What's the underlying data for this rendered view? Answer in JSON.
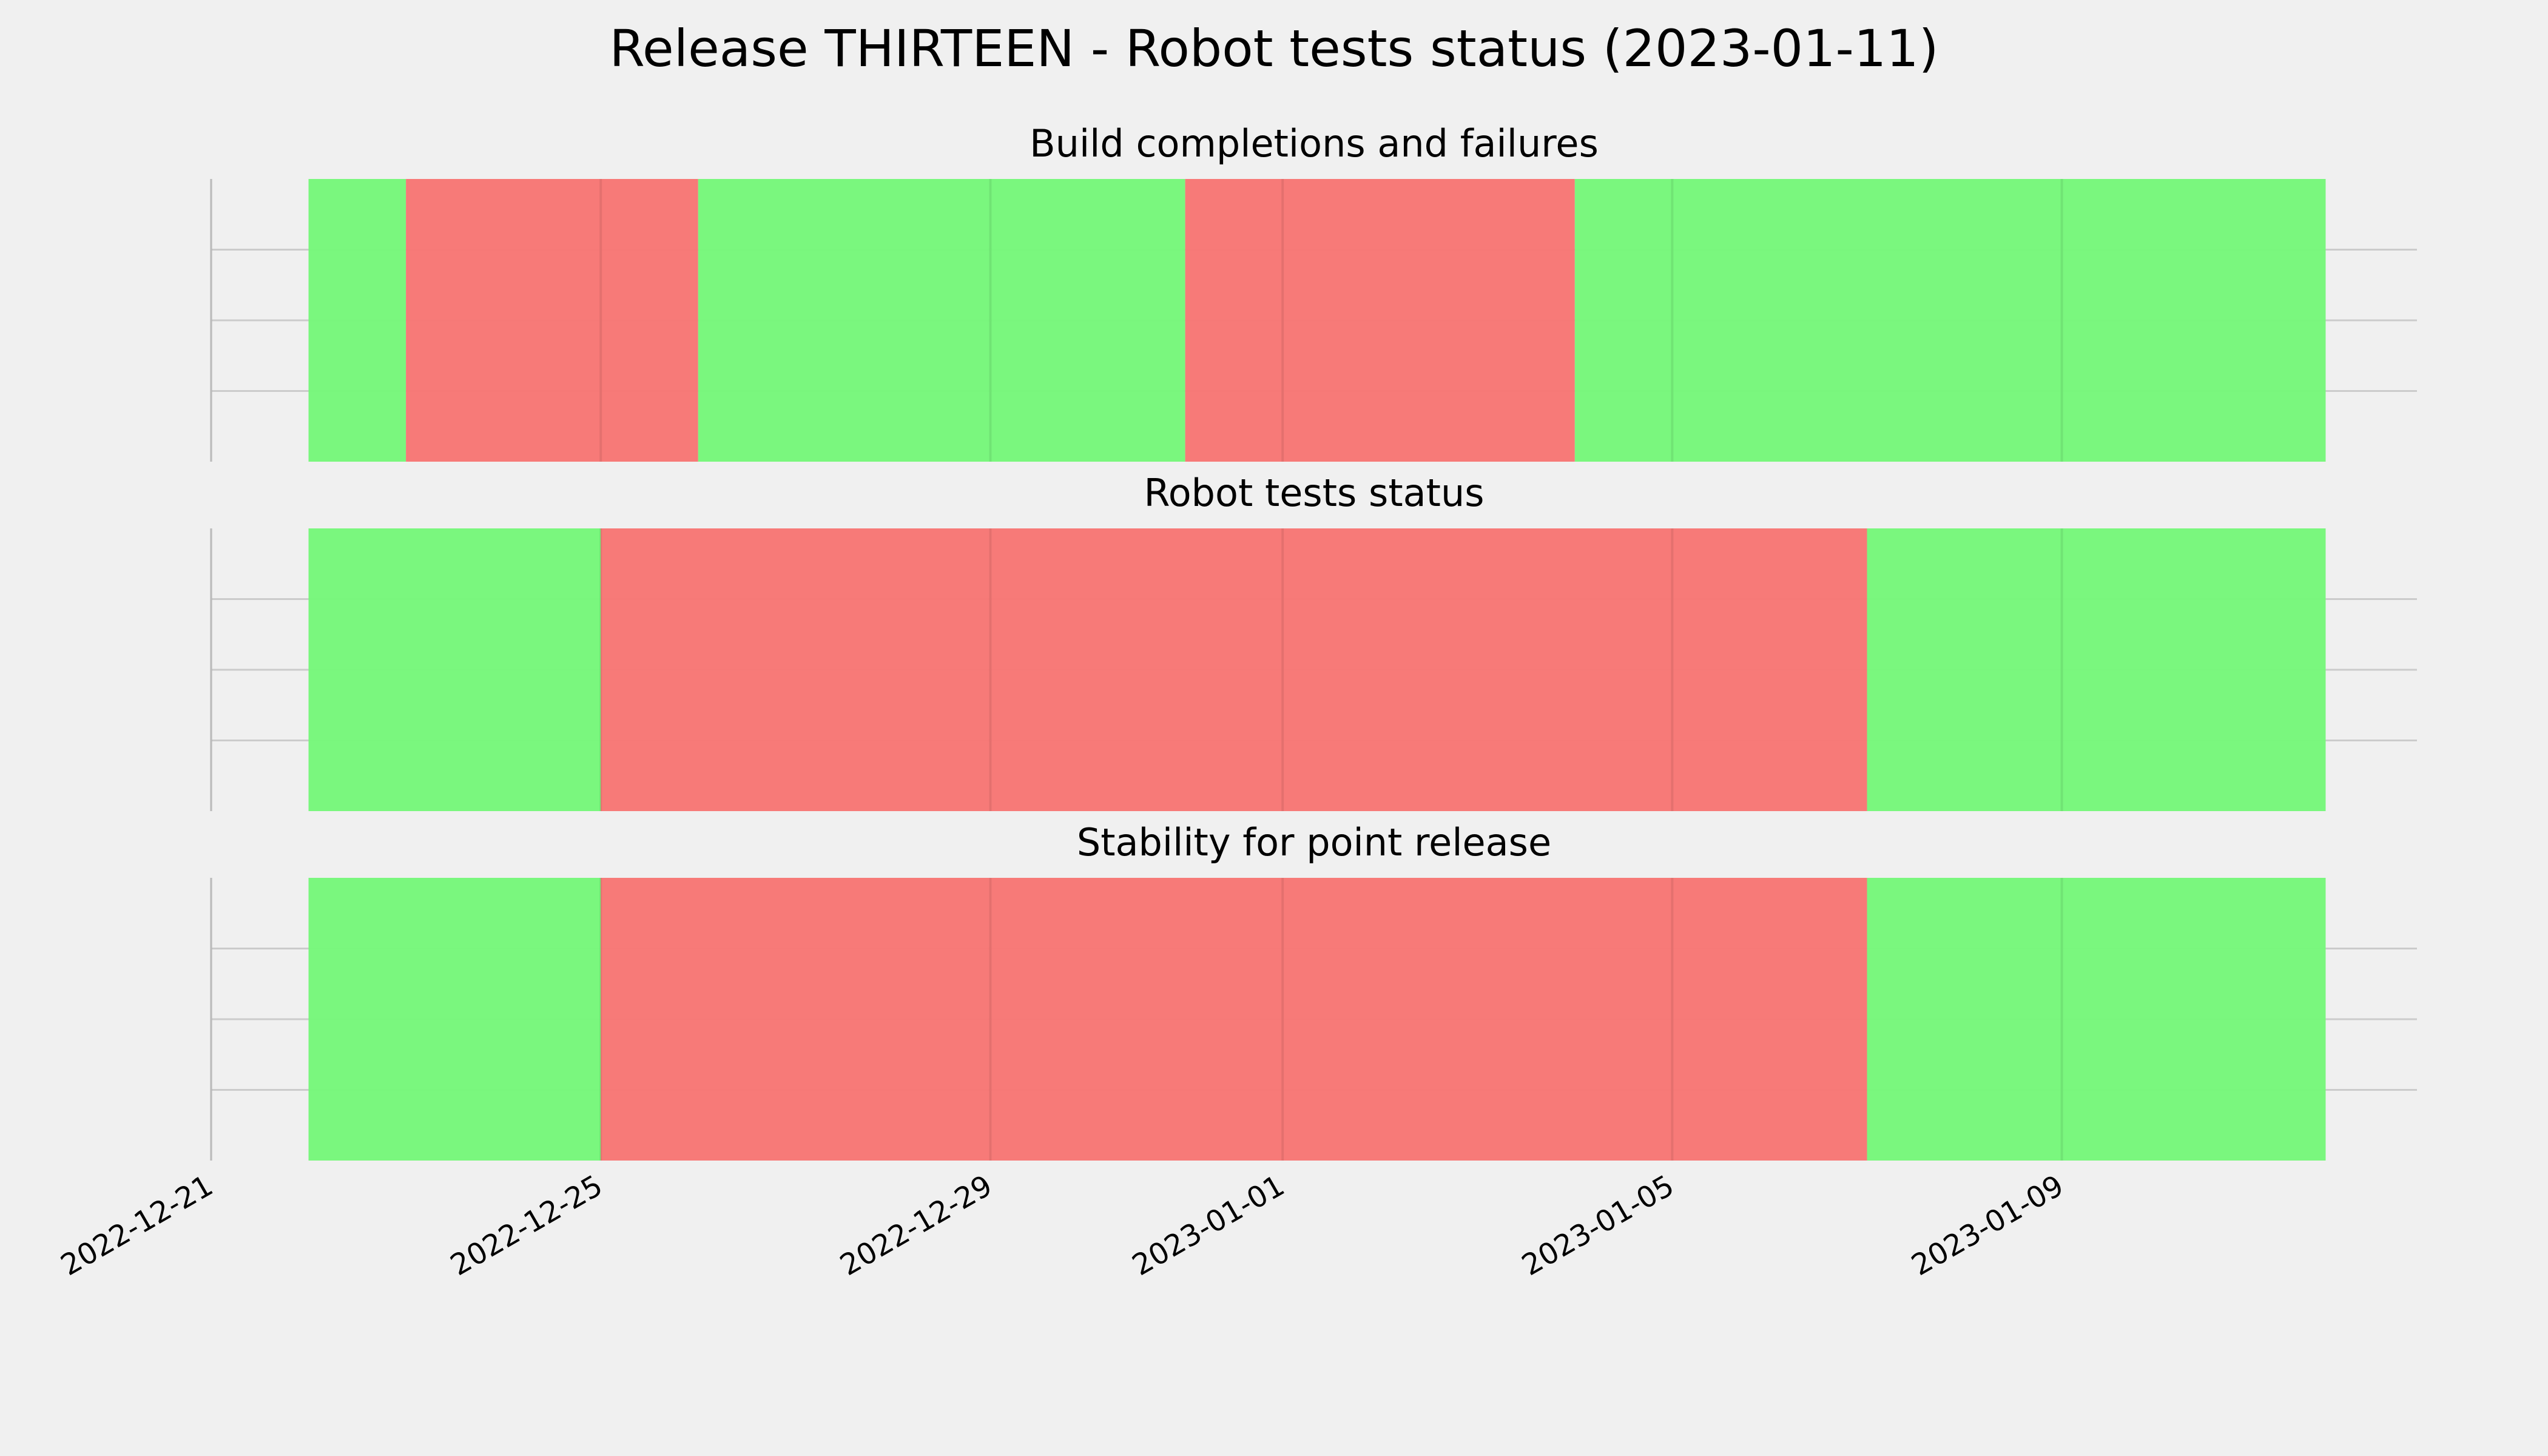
{
  "title": "Release THIRTEEN - Robot tests status (2023-01-11)",
  "chart_data": [
    {
      "type": "timeline",
      "title": "Build completions and failures",
      "segments": [
        {
          "start": "2022-12-22",
          "end": "2022-12-23",
          "color": "#76f77a"
        },
        {
          "start": "2022-12-23",
          "end": "2022-12-26",
          "color": "#f77674"
        },
        {
          "start": "2022-12-26",
          "end": "2022-12-31",
          "color": "#76f77a"
        },
        {
          "start": "2022-12-31",
          "end": "2023-01-04",
          "color": "#f77674"
        },
        {
          "start": "2023-01-04",
          "end": "2023-01-11T17:00",
          "color": "#76f77a"
        }
      ],
      "xlim": [
        "2022-12-21",
        "2023-01-12T15:30"
      ],
      "xgrid": [
        "2022-12-21",
        "2022-12-25",
        "2022-12-29",
        "2023-01-01",
        "2023-01-05",
        "2023-01-09"
      ],
      "ylim": [
        0,
        1
      ],
      "yticks": [
        0.25,
        0.5,
        0.75
      ],
      "grid": true
    },
    {
      "type": "timeline",
      "title": "Robot tests status",
      "segments": [
        {
          "start": "2022-12-22",
          "end": "2022-12-25",
          "color": "#76f77a"
        },
        {
          "start": "2022-12-25",
          "end": "2023-01-07",
          "color": "#f77674"
        },
        {
          "start": "2023-01-07",
          "end": "2023-01-11T17:00",
          "color": "#76f77a"
        }
      ],
      "xlim": [
        "2022-12-21",
        "2023-01-12T15:30"
      ],
      "xgrid": [
        "2022-12-21",
        "2022-12-25",
        "2022-12-29",
        "2023-01-01",
        "2023-01-05",
        "2023-01-09"
      ],
      "ylim": [
        0,
        1
      ],
      "yticks": [
        0.25,
        0.5,
        0.75
      ],
      "grid": true
    },
    {
      "type": "timeline",
      "title": "Stability for point release",
      "segments": [
        {
          "start": "2022-12-22",
          "end": "2022-12-25",
          "color": "#76f77a"
        },
        {
          "start": "2022-12-25",
          "end": "2023-01-07",
          "color": "#f77674"
        },
        {
          "start": "2023-01-07",
          "end": "2023-01-11T17:00",
          "color": "#76f77a"
        }
      ],
      "xlim": [
        "2022-12-21",
        "2023-01-12T15:30"
      ],
      "xticks": [
        "2022-12-21",
        "2022-12-25",
        "2022-12-29",
        "2023-01-01",
        "2023-01-05",
        "2023-01-09"
      ],
      "ylim": [
        0,
        1
      ],
      "yticks": [
        0.25,
        0.5,
        0.75
      ],
      "grid": true
    }
  ]
}
